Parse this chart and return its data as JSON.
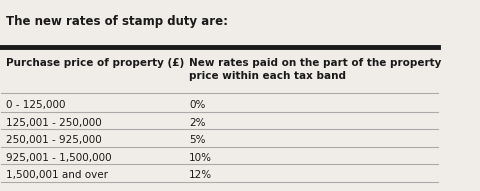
{
  "title": "The new rates of stamp duty are:",
  "col1_header": "Purchase price of property (£)",
  "col2_header": "New rates paid on the part of the property\nprice within each tax band",
  "rows": [
    [
      "0 - 125,000",
      "0%"
    ],
    [
      "125,001 - 250,000",
      "2%"
    ],
    [
      "250,001 - 925,000",
      "5%"
    ],
    [
      "925,001 - 1,500,000",
      "10%"
    ],
    [
      "1,500,001 and over",
      "12%"
    ]
  ],
  "bg_color": "#f0ede8",
  "thick_line_color": "#1a1a1a",
  "thin_line_color": "#aaaaaa",
  "text_color": "#1a1a1a",
  "col_split": 0.42,
  "title_fontsize": 8.5,
  "header_fontsize": 7.5,
  "row_fontsize": 7.5
}
